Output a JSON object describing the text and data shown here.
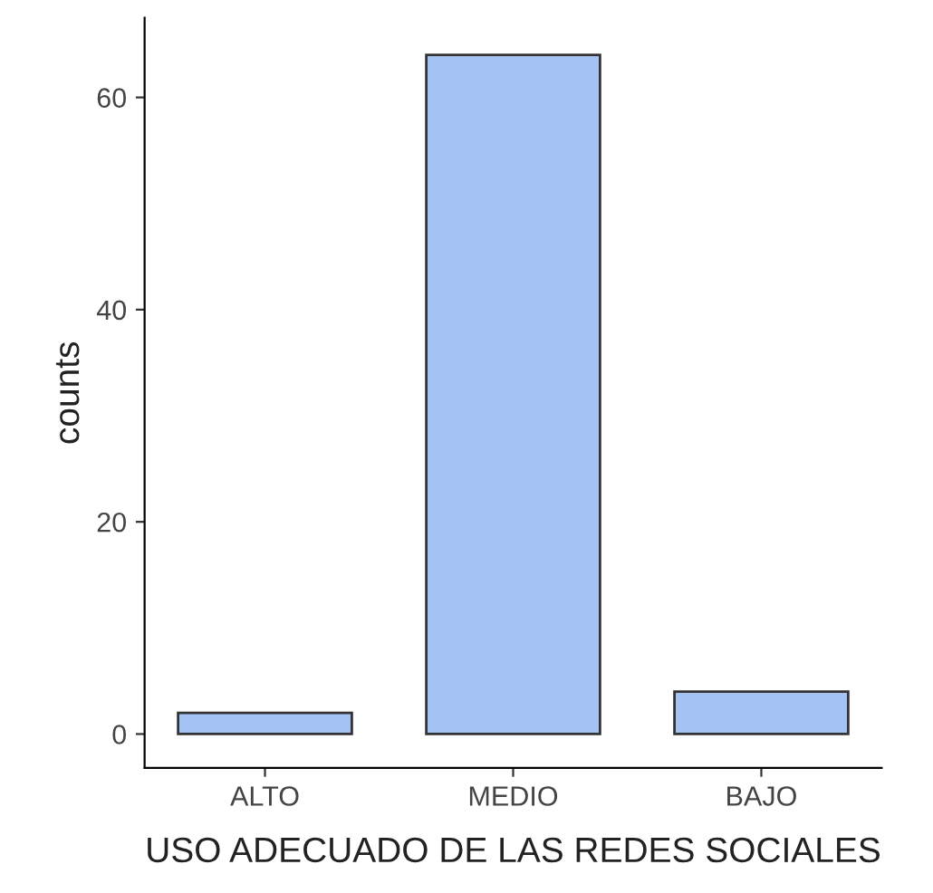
{
  "chart_data": {
    "type": "bar",
    "xlabel": "USO ADECUADO DE LAS REDES SOCIALES",
    "ylabel": "counts",
    "categories": [
      "ALTO",
      "MEDIO",
      "BAJO"
    ],
    "values": [
      2,
      64,
      4
    ],
    "color": "#a4c2f4",
    "ylim": [
      -3.2,
      67.5
    ],
    "yticks": [
      0,
      20,
      40,
      60
    ],
    "grid": false
  }
}
